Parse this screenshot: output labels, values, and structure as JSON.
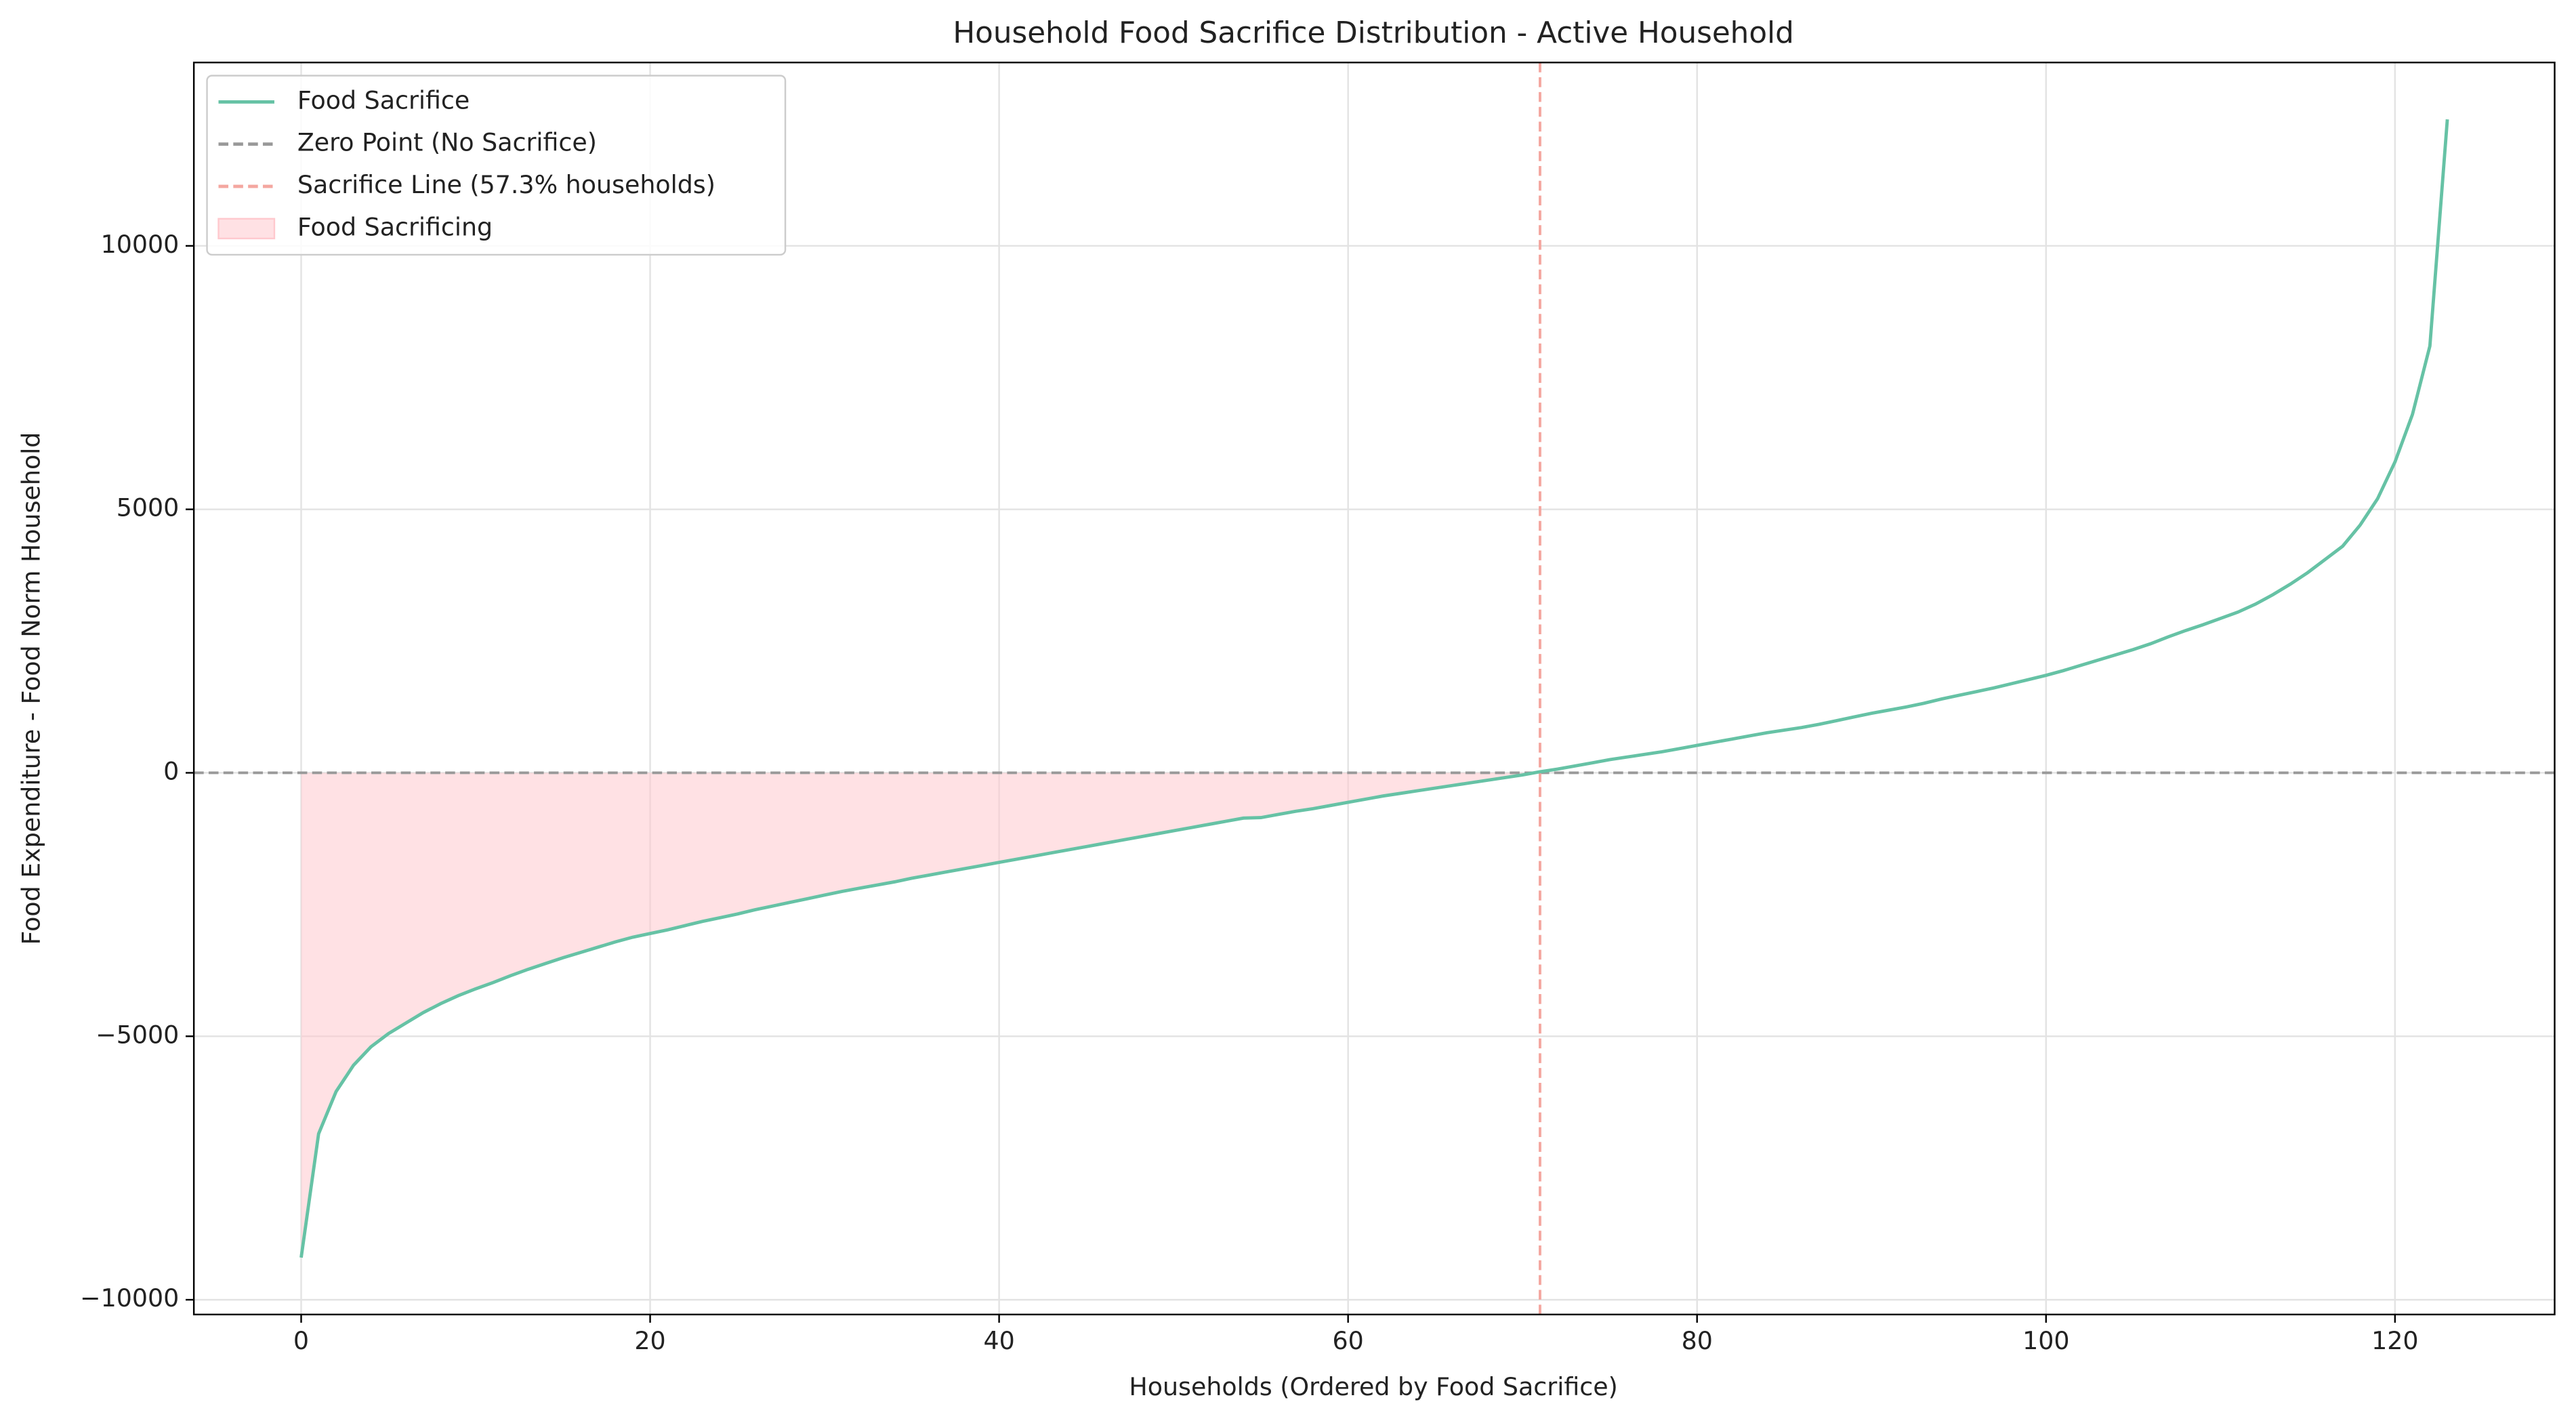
{
  "chart_data": {
    "type": "line",
    "title": "Household Food Sacrifice Distribution - Active Household",
    "x_label": "Households (Ordered by Food Sacrifice)",
    "y_label": "Food Expenditure - Food Norm Household",
    "x": [
      0,
      1,
      2,
      3,
      4,
      5,
      6,
      7,
      8,
      9,
      10,
      11,
      12,
      13,
      14,
      15,
      16,
      17,
      18,
      19,
      20,
      21,
      22,
      23,
      24,
      25,
      26,
      27,
      28,
      29,
      30,
      31,
      32,
      33,
      34,
      35,
      36,
      37,
      38,
      39,
      40,
      41,
      42,
      43,
      44,
      45,
      46,
      47,
      48,
      49,
      50,
      51,
      52,
      53,
      54,
      55,
      56,
      57,
      58,
      59,
      60,
      61,
      62,
      63,
      64,
      65,
      66,
      67,
      68,
      69,
      70,
      71,
      72,
      73,
      74,
      75,
      76,
      77,
      78,
      79,
      80,
      81,
      82,
      83,
      84,
      85,
      86,
      87,
      88,
      89,
      90,
      91,
      92,
      93,
      94,
      95,
      96,
      97,
      98,
      99,
      100,
      101,
      102,
      103,
      104,
      105,
      106,
      107,
      108,
      109,
      110,
      111,
      112,
      113,
      114,
      115,
      116,
      117,
      118,
      119,
      120,
      121,
      122,
      123
    ],
    "series": [
      {
        "name": "Food Sacrifice",
        "color": "#66c2a5",
        "values": [
          -9200,
          -6850,
          -6050,
          -5550,
          -5200,
          -4950,
          -4750,
          -4550,
          -4380,
          -4230,
          -4100,
          -3980,
          -3850,
          -3730,
          -3620,
          -3510,
          -3410,
          -3310,
          -3210,
          -3120,
          -3050,
          -2980,
          -2900,
          -2820,
          -2750,
          -2680,
          -2600,
          -2530,
          -2460,
          -2390,
          -2320,
          -2250,
          -2190,
          -2130,
          -2070,
          -2000,
          -1940,
          -1880,
          -1820,
          -1760,
          -1700,
          -1640,
          -1580,
          -1520,
          -1460,
          -1400,
          -1340,
          -1280,
          -1220,
          -1160,
          -1100,
          -1040,
          -980,
          -920,
          -860,
          -850,
          -790,
          -730,
          -680,
          -620,
          -560,
          -500,
          -440,
          -390,
          -340,
          -290,
          -240,
          -190,
          -140,
          -90,
          -40,
          20,
          70,
          130,
          190,
          250,
          300,
          350,
          400,
          460,
          520,
          580,
          640,
          700,
          760,
          810,
          860,
          920,
          990,
          1060,
          1130,
          1190,
          1250,
          1320,
          1400,
          1470,
          1540,
          1610,
          1690,
          1770,
          1850,
          1940,
          2040,
          2140,
          2240,
          2340,
          2450,
          2580,
          2700,
          2810,
          2930,
          3050,
          3200,
          3380,
          3580,
          3800,
          4050,
          4300,
          4700,
          5200,
          5900,
          6800,
          8100,
          12400
        ]
      }
    ],
    "hline": {
      "name": "Zero Point (No Sacrifice)",
      "value": 0,
      "color": "#999999"
    },
    "vline": {
      "name": "Sacrifice Line (57.3% households)",
      "value": 71,
      "color": "#f4a7a0"
    },
    "fill": {
      "name": "Food Sacrificing",
      "color": "#ffc9ce"
    },
    "xlim": [
      -6.15,
      129.15
    ],
    "ylim": [
      -10280,
      13480
    ],
    "xticks": [
      0,
      20,
      40,
      60,
      80,
      100,
      120
    ],
    "yticks": [
      {
        "value": -10000,
        "label": "−10000"
      },
      {
        "value": -5000,
        "label": "−5000"
      },
      0,
      5000,
      10000
    ],
    "grid": true,
    "legend": "upper left"
  }
}
